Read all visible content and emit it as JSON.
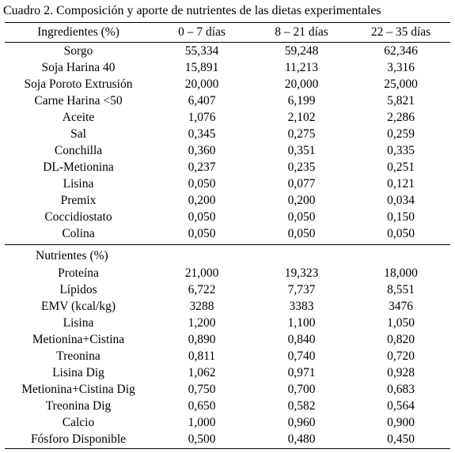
{
  "caption": "Cuadro 2. Composición y aporte de nutrientes de las dietas experimentales",
  "header": [
    "Ingredientes (%)",
    "0 – 7 días",
    "8 – 21 días",
    "22 – 35 días"
  ],
  "ingredients": [
    {
      "name": "Sorgo",
      "v": [
        "55,334",
        "59,248",
        "62,346"
      ]
    },
    {
      "name": "Soja Harina 40",
      "v": [
        "15,891",
        "11,213",
        "3,316"
      ]
    },
    {
      "name": "Soja Poroto Extrusión",
      "v": [
        "20,000",
        "20,000",
        "25,000"
      ]
    },
    {
      "name": "Carne Harina <50",
      "v": [
        "6,407",
        "6,199",
        "5,821"
      ]
    },
    {
      "name": "Aceite",
      "v": [
        "1,076",
        "2,102",
        "2,286"
      ]
    },
    {
      "name": "Sal",
      "v": [
        "0,345",
        "0,275",
        "0,259"
      ]
    },
    {
      "name": "Conchilla",
      "v": [
        "0,360",
        "0,351",
        "0,335"
      ]
    },
    {
      "name": "DL-Metionina",
      "v": [
        "0,237",
        "0,235",
        "0,251"
      ]
    },
    {
      "name": "Lisina",
      "v": [
        "0,050",
        "0,077",
        "0,121"
      ]
    },
    {
      "name": "Premix",
      "v": [
        "0,200",
        "0,200",
        "0,034"
      ]
    },
    {
      "name": "Coccidiostato",
      "v": [
        "0,050",
        "0,050",
        "0,150"
      ]
    },
    {
      "name": "Colina",
      "v": [
        "0,050",
        "0,050",
        "0,050"
      ]
    }
  ],
  "nutrients_label": "Nutrientes (%)",
  "nutrients": [
    {
      "name": "Proteína",
      "v": [
        "21,000",
        "19,323",
        "18,000"
      ]
    },
    {
      "name": "Lípidos",
      "v": [
        "6,722",
        "7,737",
        "8,551"
      ]
    },
    {
      "name": "EMV (kcal/kg)",
      "v": [
        "3288",
        "3383",
        "3476"
      ]
    },
    {
      "name": "Lisina",
      "v": [
        "1,200",
        "1,100",
        "1,050"
      ]
    },
    {
      "name": "Metionina+Cistina",
      "v": [
        "0,890",
        "0,840",
        "0,820"
      ]
    },
    {
      "name": "Treonina",
      "v": [
        "0,811",
        "0,740",
        "0,720"
      ]
    },
    {
      "name": "Lisina Dig",
      "v": [
        "1,062",
        "0,971",
        "0,928"
      ]
    },
    {
      "name": "Metionina+Cistina Dig",
      "v": [
        "0,750",
        "0,700",
        "0,683"
      ]
    },
    {
      "name": "Treonina Dig",
      "v": [
        "0,650",
        "0,582",
        "0,564"
      ]
    },
    {
      "name": "Calcio",
      "v": [
        "1,000",
        "0,960",
        "0,900"
      ]
    },
    {
      "name": "Fósforo Disponible",
      "v": [
        "0,500",
        "0,480",
        "0,450"
      ]
    }
  ]
}
